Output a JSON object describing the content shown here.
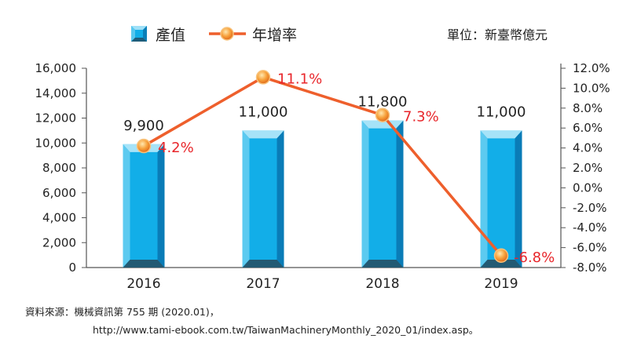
{
  "chart_data": {
    "type": "bar+line",
    "categories": [
      "2016",
      "2017",
      "2018",
      "2019"
    ],
    "series": [
      {
        "name": "產值",
        "type": "bar",
        "axis": "left",
        "values": [
          9900,
          11000,
          11800,
          11000
        ],
        "value_labels": [
          "9,900",
          "11,000",
          "11,800",
          "11,000"
        ],
        "color": "#12aee8"
      },
      {
        "name": "年增率",
        "type": "line",
        "axis": "right",
        "values": [
          4.2,
          11.1,
          7.3,
          -6.8
        ],
        "value_labels": [
          "4.2%",
          "11.1%",
          "7.3%",
          "-6.8%"
        ],
        "color": "#ee5f2c"
      }
    ],
    "y_left": {
      "min": 0,
      "max": 16000,
      "ticks": [
        "0",
        "2,000",
        "4,000",
        "6,000",
        "8,000",
        "10,000",
        "12,000",
        "14,000",
        "16,000"
      ]
    },
    "y_right": {
      "min": -8,
      "max": 12,
      "ticks": [
        "-8.0%",
        "-6.0%",
        "-4.0%",
        "-2.0%",
        "0.0%",
        "2.0%",
        "4.0%",
        "6.0%",
        "8.0%",
        "10.0%",
        "12.0%"
      ]
    },
    "legend_position": "top-center",
    "grid": false,
    "unit_label": "單位：新臺幣億元"
  },
  "source": {
    "line1": "資料來源：機械資訊第 755 期 (2020.01)，",
    "line2": "http://www.tami-ebook.com.tw/TaiwanMachineryMonthly_2020_01/index.asp。"
  }
}
